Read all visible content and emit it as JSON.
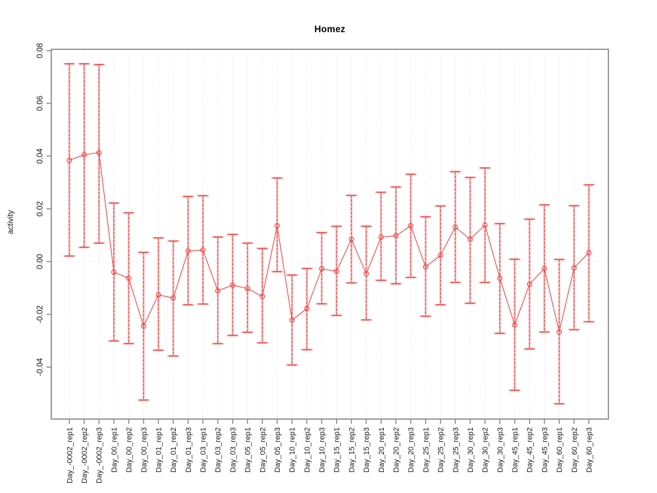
{
  "chart_data": {
    "type": "line",
    "title": "Homez",
    "ylabel": "activity",
    "xlabel": "",
    "legend": "none",
    "grid": "vertical dotted gridline per category; dotted horizontal line at y=0",
    "ylim": [
      -0.0597,
      0.0805
    ],
    "yticks": [
      -0.04,
      -0.02,
      0.0,
      0.02,
      0.04,
      0.06,
      0.08
    ],
    "ytick_labels": [
      "-0.04",
      "-0.02",
      "0.00",
      "0.02",
      "0.04",
      "0.06",
      "0.08"
    ],
    "categories": [
      "Day_-0002_rep1",
      "Day_-0002_rep2",
      "Day_-0002_rep3",
      "Day_00_rep1",
      "Day_00_rep2",
      "Day_00_rep3",
      "Day_01_rep1",
      "Day_01_rep2",
      "Day_01_rep3",
      "Day_03_rep1",
      "Day_03_rep2",
      "Day_03_rep3",
      "Day_05_rep1",
      "Day_05_rep2",
      "Day_05_rep3",
      "Day_10_rep1",
      "Day_10_rep2",
      "Day_10_rep3",
      "Day_15_rep1",
      "Day_15_rep2",
      "Day_15_rep3",
      "Day_20_rep1",
      "Day_20_rep2",
      "Day_20_rep3",
      "Day_25_rep1",
      "Day_25_rep2",
      "Day_25_rep3",
      "Day_30_rep1",
      "Day_30_rep2",
      "Day_30_rep3",
      "Day_45_rep1",
      "Day_45_rep2",
      "Day_45_rep3",
      "Day_60_rep1",
      "Day_60_rep2",
      "Day_60_rep3"
    ],
    "series": [
      {
        "name": "activity",
        "marker": "open-circle",
        "values": [
          0.0384,
          0.0405,
          0.0413,
          -0.004,
          -0.0063,
          -0.0245,
          -0.0126,
          -0.0138,
          0.004,
          0.0044,
          -0.0111,
          -0.0089,
          -0.0102,
          -0.0132,
          0.0136,
          -0.0222,
          -0.0178,
          -0.0027,
          -0.0037,
          0.0085,
          -0.0046,
          0.0093,
          0.0098,
          0.0136,
          -0.002,
          0.0024,
          0.0131,
          0.0085,
          0.0138,
          -0.0063,
          -0.024,
          -0.0086,
          -0.0026,
          -0.0267,
          -0.0024,
          0.0034
        ],
        "upper": [
          0.075,
          0.075,
          0.0747,
          0.0222,
          0.0185,
          0.0035,
          0.009,
          0.0078,
          0.0247,
          0.025,
          0.0093,
          0.0103,
          0.007,
          0.005,
          0.0317,
          -0.0051,
          -0.0026,
          0.011,
          0.0134,
          0.0251,
          0.0134,
          0.0263,
          0.0283,
          0.0331,
          0.017,
          0.0211,
          0.0341,
          0.0319,
          0.0355,
          0.0144,
          0.0009,
          0.0161,
          0.0215,
          0.0008,
          0.0212,
          0.0291
        ],
        "lower": [
          0.0021,
          0.0054,
          0.007,
          -0.0301,
          -0.0311,
          -0.0525,
          -0.0336,
          -0.0358,
          -0.0164,
          -0.0161,
          -0.0311,
          -0.028,
          -0.0268,
          -0.0308,
          -0.0038,
          -0.0392,
          -0.0334,
          -0.016,
          -0.0204,
          -0.0081,
          -0.0221,
          -0.0071,
          -0.0084,
          -0.006,
          -0.0207,
          -0.0164,
          -0.0079,
          -0.0158,
          -0.0079,
          -0.0272,
          -0.0488,
          -0.0331,
          -0.0267,
          -0.0539,
          -0.0258,
          -0.0228
        ]
      }
    ],
    "colors": {
      "line": "#ee4444",
      "point": "#ee4444",
      "error_bar_light": "#f7abab",
      "error_bar_dark": "#ee4444",
      "gridline": "#dcdcdc",
      "zero_line": "#d8d8d8",
      "axis": "#828282",
      "tick_text": "#1a1a1a",
      "background": "#ffffff"
    }
  }
}
